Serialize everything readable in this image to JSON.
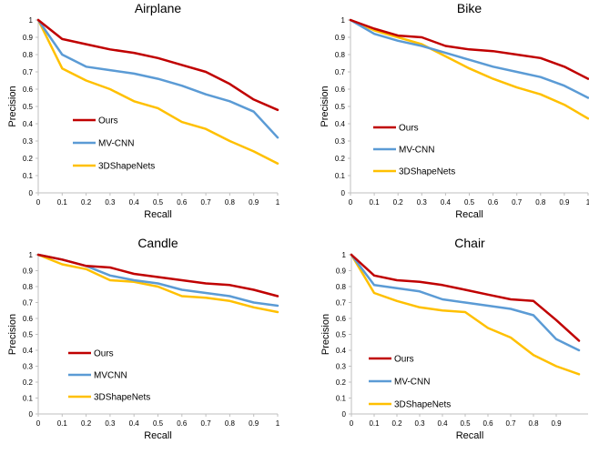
{
  "colors": {
    "ours": "#C00000",
    "mvcnn": "#5B9BD5",
    "shapenets": "#FFC000",
    "axis": "#BFBFBF",
    "text": "#000000"
  },
  "chart_data": [
    {
      "type": "line",
      "title": "Airplane",
      "xlabel": "Recall",
      "ylabel": "Precision",
      "xlim": [
        0,
        1
      ],
      "ylim": [
        0,
        1
      ],
      "x_ticks": [
        "0",
        "0.1",
        "0.2",
        "0.3",
        "0.4",
        "0.5",
        "0.6",
        "0.7",
        "0.8",
        "0.9",
        "1"
      ],
      "y_ticks": [
        "0",
        "0.1",
        "0.2",
        "0.3",
        "0.4",
        "0.5",
        "0.6",
        "0.7",
        "0.8",
        "0.9",
        "1"
      ],
      "grid": false,
      "legend_position": "inside-lower-left",
      "x": [
        0,
        0.1,
        0.2,
        0.3,
        0.4,
        0.5,
        0.6,
        0.7,
        0.8,
        0.9,
        1
      ],
      "series": [
        {
          "name": "Ours",
          "values": [
            1,
            0.89,
            0.86,
            0.83,
            0.81,
            0.78,
            0.74,
            0.7,
            0.63,
            0.54,
            0.48
          ]
        },
        {
          "name": "MV-CNN",
          "values": [
            1,
            0.8,
            0.73,
            0.71,
            0.69,
            0.66,
            0.62,
            0.57,
            0.53,
            0.47,
            0.32
          ]
        },
        {
          "name": "3DShapeNets",
          "values": [
            1,
            0.72,
            0.65,
            0.6,
            0.53,
            0.49,
            0.41,
            0.37,
            0.3,
            0.24,
            0.17
          ]
        }
      ]
    },
    {
      "type": "line",
      "title": "Bike",
      "xlabel": "Recall",
      "ylabel": "Precision",
      "xlim": [
        0,
        1
      ],
      "ylim": [
        0,
        1
      ],
      "x_ticks": [
        "0",
        "0.1",
        "0.2",
        "0.3",
        "0.4",
        "0.5",
        "0.6",
        "0.7",
        "0.8",
        "0.9",
        "1"
      ],
      "y_ticks": [
        "0",
        "0.1",
        "0.2",
        "0.3",
        "0.4",
        "0.5",
        "0.6",
        "0.7",
        "0.8",
        "0.9",
        "1"
      ],
      "grid": false,
      "legend_position": "inside-lower-left",
      "x": [
        0,
        0.1,
        0.2,
        0.3,
        0.4,
        0.5,
        0.6,
        0.7,
        0.8,
        0.9,
        1
      ],
      "series": [
        {
          "name": "Ours",
          "values": [
            1,
            0.95,
            0.91,
            0.9,
            0.85,
            0.83,
            0.82,
            0.8,
            0.78,
            0.73,
            0.66
          ]
        },
        {
          "name": "MV-CNN",
          "values": [
            1,
            0.92,
            0.88,
            0.85,
            0.81,
            0.77,
            0.73,
            0.7,
            0.67,
            0.62,
            0.55
          ]
        },
        {
          "name": "3DShapeNets",
          "values": [
            1,
            0.94,
            0.9,
            0.86,
            0.79,
            0.72,
            0.66,
            0.61,
            0.57,
            0.51,
            0.43
          ]
        }
      ]
    },
    {
      "type": "line",
      "title": "Candle",
      "xlabel": "Recall",
      "ylabel": "Precision",
      "xlim": [
        0,
        1
      ],
      "ylim": [
        0,
        1
      ],
      "x_ticks": [
        "0",
        "0.1",
        "0.2",
        "0.3",
        "0.4",
        "0.5",
        "0.6",
        "0.7",
        "0.8",
        "0.9",
        "1"
      ],
      "y_ticks": [
        "0",
        "0.1",
        "0.2",
        "0.3",
        "0.4",
        "0.5",
        "0.6",
        "0.7",
        "0.8",
        "0.9",
        "1"
      ],
      "grid": false,
      "legend_position": "inside-lower-left",
      "x": [
        0,
        0.1,
        0.2,
        0.3,
        0.4,
        0.5,
        0.6,
        0.7,
        0.8,
        0.9,
        1
      ],
      "series": [
        {
          "name": "Ours",
          "values": [
            1,
            0.97,
            0.93,
            0.92,
            0.88,
            0.86,
            0.84,
            0.82,
            0.81,
            0.78,
            0.74
          ]
        },
        {
          "name": "MVCNN",
          "values": [
            1,
            0.97,
            0.93,
            0.87,
            0.84,
            0.82,
            0.78,
            0.76,
            0.74,
            0.7,
            0.68
          ]
        },
        {
          "name": "3DShapeNets",
          "values": [
            1,
            0.94,
            0.91,
            0.84,
            0.83,
            0.8,
            0.74,
            0.73,
            0.71,
            0.67,
            0.64
          ]
        }
      ]
    },
    {
      "type": "line",
      "title": "Chair",
      "xlabel": "Recall",
      "ylabel": "Precision",
      "xlim": [
        0,
        1
      ],
      "ylim": [
        0,
        1
      ],
      "x_ticks": [
        "0",
        "0.1",
        "0.2",
        "0.3",
        "0.4",
        "0.5",
        "0.6",
        "0.7",
        "0.8",
        "0.9"
      ],
      "y_ticks": [
        "0",
        "0.1",
        "0.2",
        "0.3",
        "0.4",
        "0.5",
        "0.6",
        "0.7",
        "0.8",
        "0.9",
        "1"
      ],
      "grid": false,
      "legend_position": "inside-lower-left",
      "x": [
        0,
        0.1,
        0.2,
        0.3,
        0.4,
        0.5,
        0.6,
        0.7,
        0.8,
        0.9,
        1
      ],
      "series": [
        {
          "name": "Ours",
          "values": [
            1,
            0.87,
            0.84,
            0.83,
            0.81,
            0.78,
            0.75,
            0.72,
            0.71,
            0.59,
            0.46
          ]
        },
        {
          "name": "MV-CNN",
          "values": [
            1,
            0.81,
            0.79,
            0.77,
            0.72,
            0.7,
            0.68,
            0.66,
            0.62,
            0.47,
            0.4
          ]
        },
        {
          "name": "3DShapeNets",
          "values": [
            1,
            0.76,
            0.71,
            0.67,
            0.65,
            0.64,
            0.54,
            0.48,
            0.37,
            0.3,
            0.25
          ]
        }
      ]
    }
  ]
}
